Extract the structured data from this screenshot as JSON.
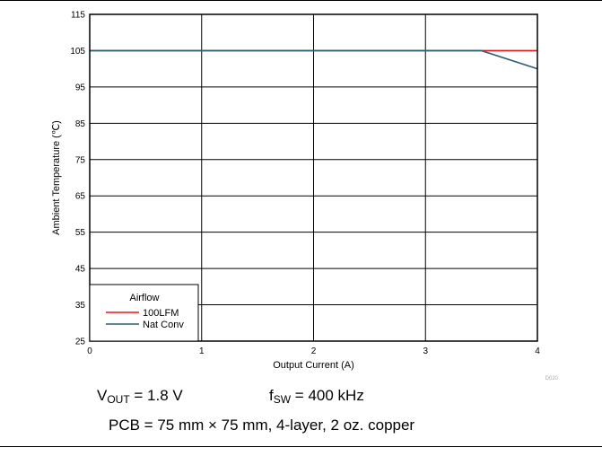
{
  "chart_data": {
    "type": "line",
    "title": "",
    "xlabel": "Output Current (A)",
    "ylabel": "Ambient Temperature (℃)",
    "xlim": [
      0,
      4
    ],
    "ylim": [
      25,
      115
    ],
    "xticks": [
      "0",
      "1",
      "2",
      "3",
      "4"
    ],
    "yticks": [
      "25",
      "35",
      "45",
      "55",
      "65",
      "75",
      "85",
      "95",
      "105",
      "115"
    ],
    "grid": true,
    "legend": {
      "title": "Airflow",
      "position": "bottom-left"
    },
    "series": [
      {
        "name": "100LFM",
        "color": "#e8141c",
        "x": [
          0,
          3.5,
          4
        ],
        "y": [
          105,
          105,
          105
        ]
      },
      {
        "name": "Nat Conv",
        "color": "#2a5f72",
        "x": [
          0,
          3.5,
          4
        ],
        "y": [
          105,
          105,
          100
        ]
      }
    ],
    "figure_id": "D020"
  },
  "conditions": {
    "vout_main": "V",
    "vout_sub": "OUT",
    "vout_rest": " = 1.8 V",
    "fsw_main": "f",
    "fsw_sub": "SW",
    "fsw_rest": " = 400 kHz",
    "pcb": "PCB = 75 mm × 75 mm, 4-layer, 2 oz. copper"
  }
}
